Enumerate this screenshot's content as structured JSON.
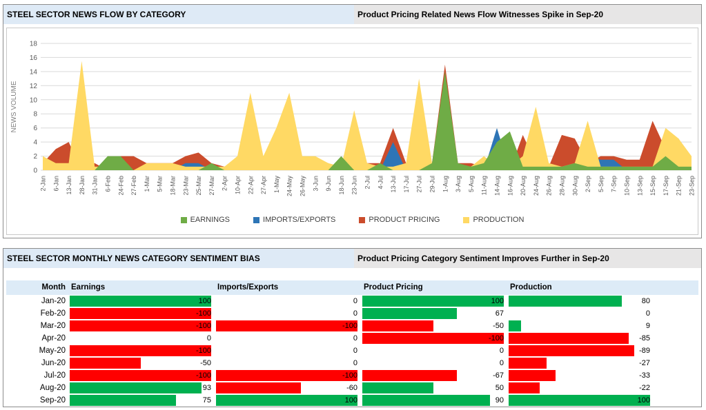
{
  "panels": {
    "news_flow": {
      "title": "STEEL SECTOR NEWS FLOW BY CATEGORY",
      "headline": "Product Pricing Related News Flow Witnesses Spike in Sep-20"
    },
    "sentiment": {
      "title": "STEEL SECTOR MONTHLY NEWS CATEGORY SENTIMENT BIAS",
      "headline": "Product Pricing Category Sentiment Improves Further in Sep-20"
    }
  },
  "chart_data": [
    {
      "type": "area",
      "overlapping": true,
      "ylabel": "NEWS VOLUME",
      "ylim": [
        0,
        18
      ],
      "ytick_step": 2,
      "grid": true,
      "legend_position": "bottom",
      "categories": [
        "2-Jan",
        "6-Jan",
        "13-Jan",
        "28-Jan",
        "31-Jan",
        "6-Feb",
        "24-Feb",
        "27-Feb",
        "1-Mar",
        "5-Mar",
        "18-Mar",
        "23-Mar",
        "25-Mar",
        "27-Mar",
        "2-Apr",
        "10-Apr",
        "22-Apr",
        "27-Apr",
        "1-May",
        "24-May",
        "26-May",
        "3-Jun",
        "9-Jun",
        "18-Jun",
        "23-Jun",
        "2-Jul",
        "4-Jul",
        "13-Jul",
        "17-Jul",
        "27-Jul",
        "29-Jul",
        "1-Aug",
        "3-Aug",
        "5-Aug",
        "11-Aug",
        "14-Aug",
        "16-Aug",
        "20-Aug",
        "24-Aug",
        "26-Aug",
        "28-Aug",
        "30-Aug",
        "2-Sep",
        "5-Sep",
        "7-Sep",
        "10-Sep",
        "13-Sep",
        "15-Sep",
        "17-Sep",
        "21-Sep",
        "23-Sep"
      ],
      "series": [
        {
          "name": "EARNINGS",
          "color": "#6fac46",
          "values": [
            0,
            0,
            0,
            0,
            0,
            2,
            2,
            0,
            0,
            0,
            0,
            0,
            0,
            1,
            0,
            0,
            0,
            0,
            0,
            0,
            0,
            0,
            0,
            2,
            0,
            0,
            1,
            0,
            0,
            0,
            1,
            14,
            1,
            0.5,
            1,
            4,
            5.5,
            0.5,
            0.5,
            0.5,
            0.5,
            1,
            0.5,
            0.5,
            0.5,
            0.5,
            0.5,
            0.5,
            2,
            0.5,
            0.5
          ]
        },
        {
          "name": "IMPORTS/EXPORTS",
          "color": "#2e75b6",
          "values": [
            0,
            0,
            0,
            0,
            0,
            0,
            0,
            0,
            0,
            0,
            0,
            1,
            1,
            0,
            0,
            0,
            0,
            0,
            0,
            0,
            0,
            0,
            1,
            0,
            0,
            0,
            0,
            4,
            0,
            0,
            0,
            0,
            0,
            0,
            0,
            6,
            0,
            0,
            0,
            0,
            0,
            0,
            2,
            1.5,
            1.5,
            0,
            0,
            0,
            2,
            4.5,
            1.5
          ]
        },
        {
          "name": "PRODUCT PRICING",
          "color": "#cb4c2c",
          "values": [
            1,
            3,
            4,
            0,
            1,
            0,
            2,
            2,
            1,
            1,
            1,
            2,
            2.5,
            1,
            0.5,
            0.5,
            0,
            1,
            0,
            0,
            1,
            0,
            0,
            0,
            0,
            1,
            1,
            6,
            1,
            0,
            1,
            15,
            1,
            1,
            0.5,
            0,
            0,
            5,
            1,
            0.5,
            5,
            4.5,
            1,
            2,
            2,
            1.5,
            1.5,
            7,
            3,
            1,
            0.5
          ]
        },
        {
          "name": "PRODUCTION",
          "color": "#ffd964",
          "values": [
            2,
            1,
            1,
            15.5,
            0.5,
            0.5,
            0,
            0,
            1,
            1,
            1,
            0.5,
            0.5,
            0.5,
            0.5,
            2,
            11,
            2,
            6,
            11,
            2,
            2,
            1,
            0.5,
            8.5,
            1,
            0.5,
            0.5,
            1,
            13,
            1,
            1,
            0.5,
            0.5,
            2,
            0.5,
            0.5,
            2,
            9,
            1,
            0.5,
            1,
            7,
            0.5,
            0.5,
            0.5,
            0.5,
            0.5,
            6,
            4.5,
            2
          ]
        }
      ]
    },
    {
      "type": "table",
      "columns": [
        "Month",
        "Earnings",
        "Imports/Exports",
        "Product Pricing",
        "Production"
      ],
      "positive_color": "#00b050",
      "negative_color": "#ff0000",
      "value_range": [
        -100,
        100
      ],
      "rows": [
        {
          "month": "Jan-20",
          "values": [
            100,
            0,
            100,
            80
          ]
        },
        {
          "month": "Feb-20",
          "values": [
            -100,
            0,
            67,
            0
          ]
        },
        {
          "month": "Mar-20",
          "values": [
            -100,
            -100,
            -50,
            9
          ]
        },
        {
          "month": "Apr-20",
          "values": [
            0,
            0,
            -100,
            -85
          ]
        },
        {
          "month": "May-20",
          "values": [
            -100,
            0,
            0,
            -89
          ]
        },
        {
          "month": "Jun-20",
          "values": [
            -50,
            0,
            0,
            -27
          ]
        },
        {
          "month": "Jul-20",
          "values": [
            -100,
            -100,
            -67,
            -33
          ]
        },
        {
          "month": "Aug-20",
          "values": [
            93,
            -60,
            50,
            -22
          ]
        },
        {
          "month": "Sep-20",
          "values": [
            75,
            100,
            90,
            100
          ]
        }
      ]
    }
  ]
}
